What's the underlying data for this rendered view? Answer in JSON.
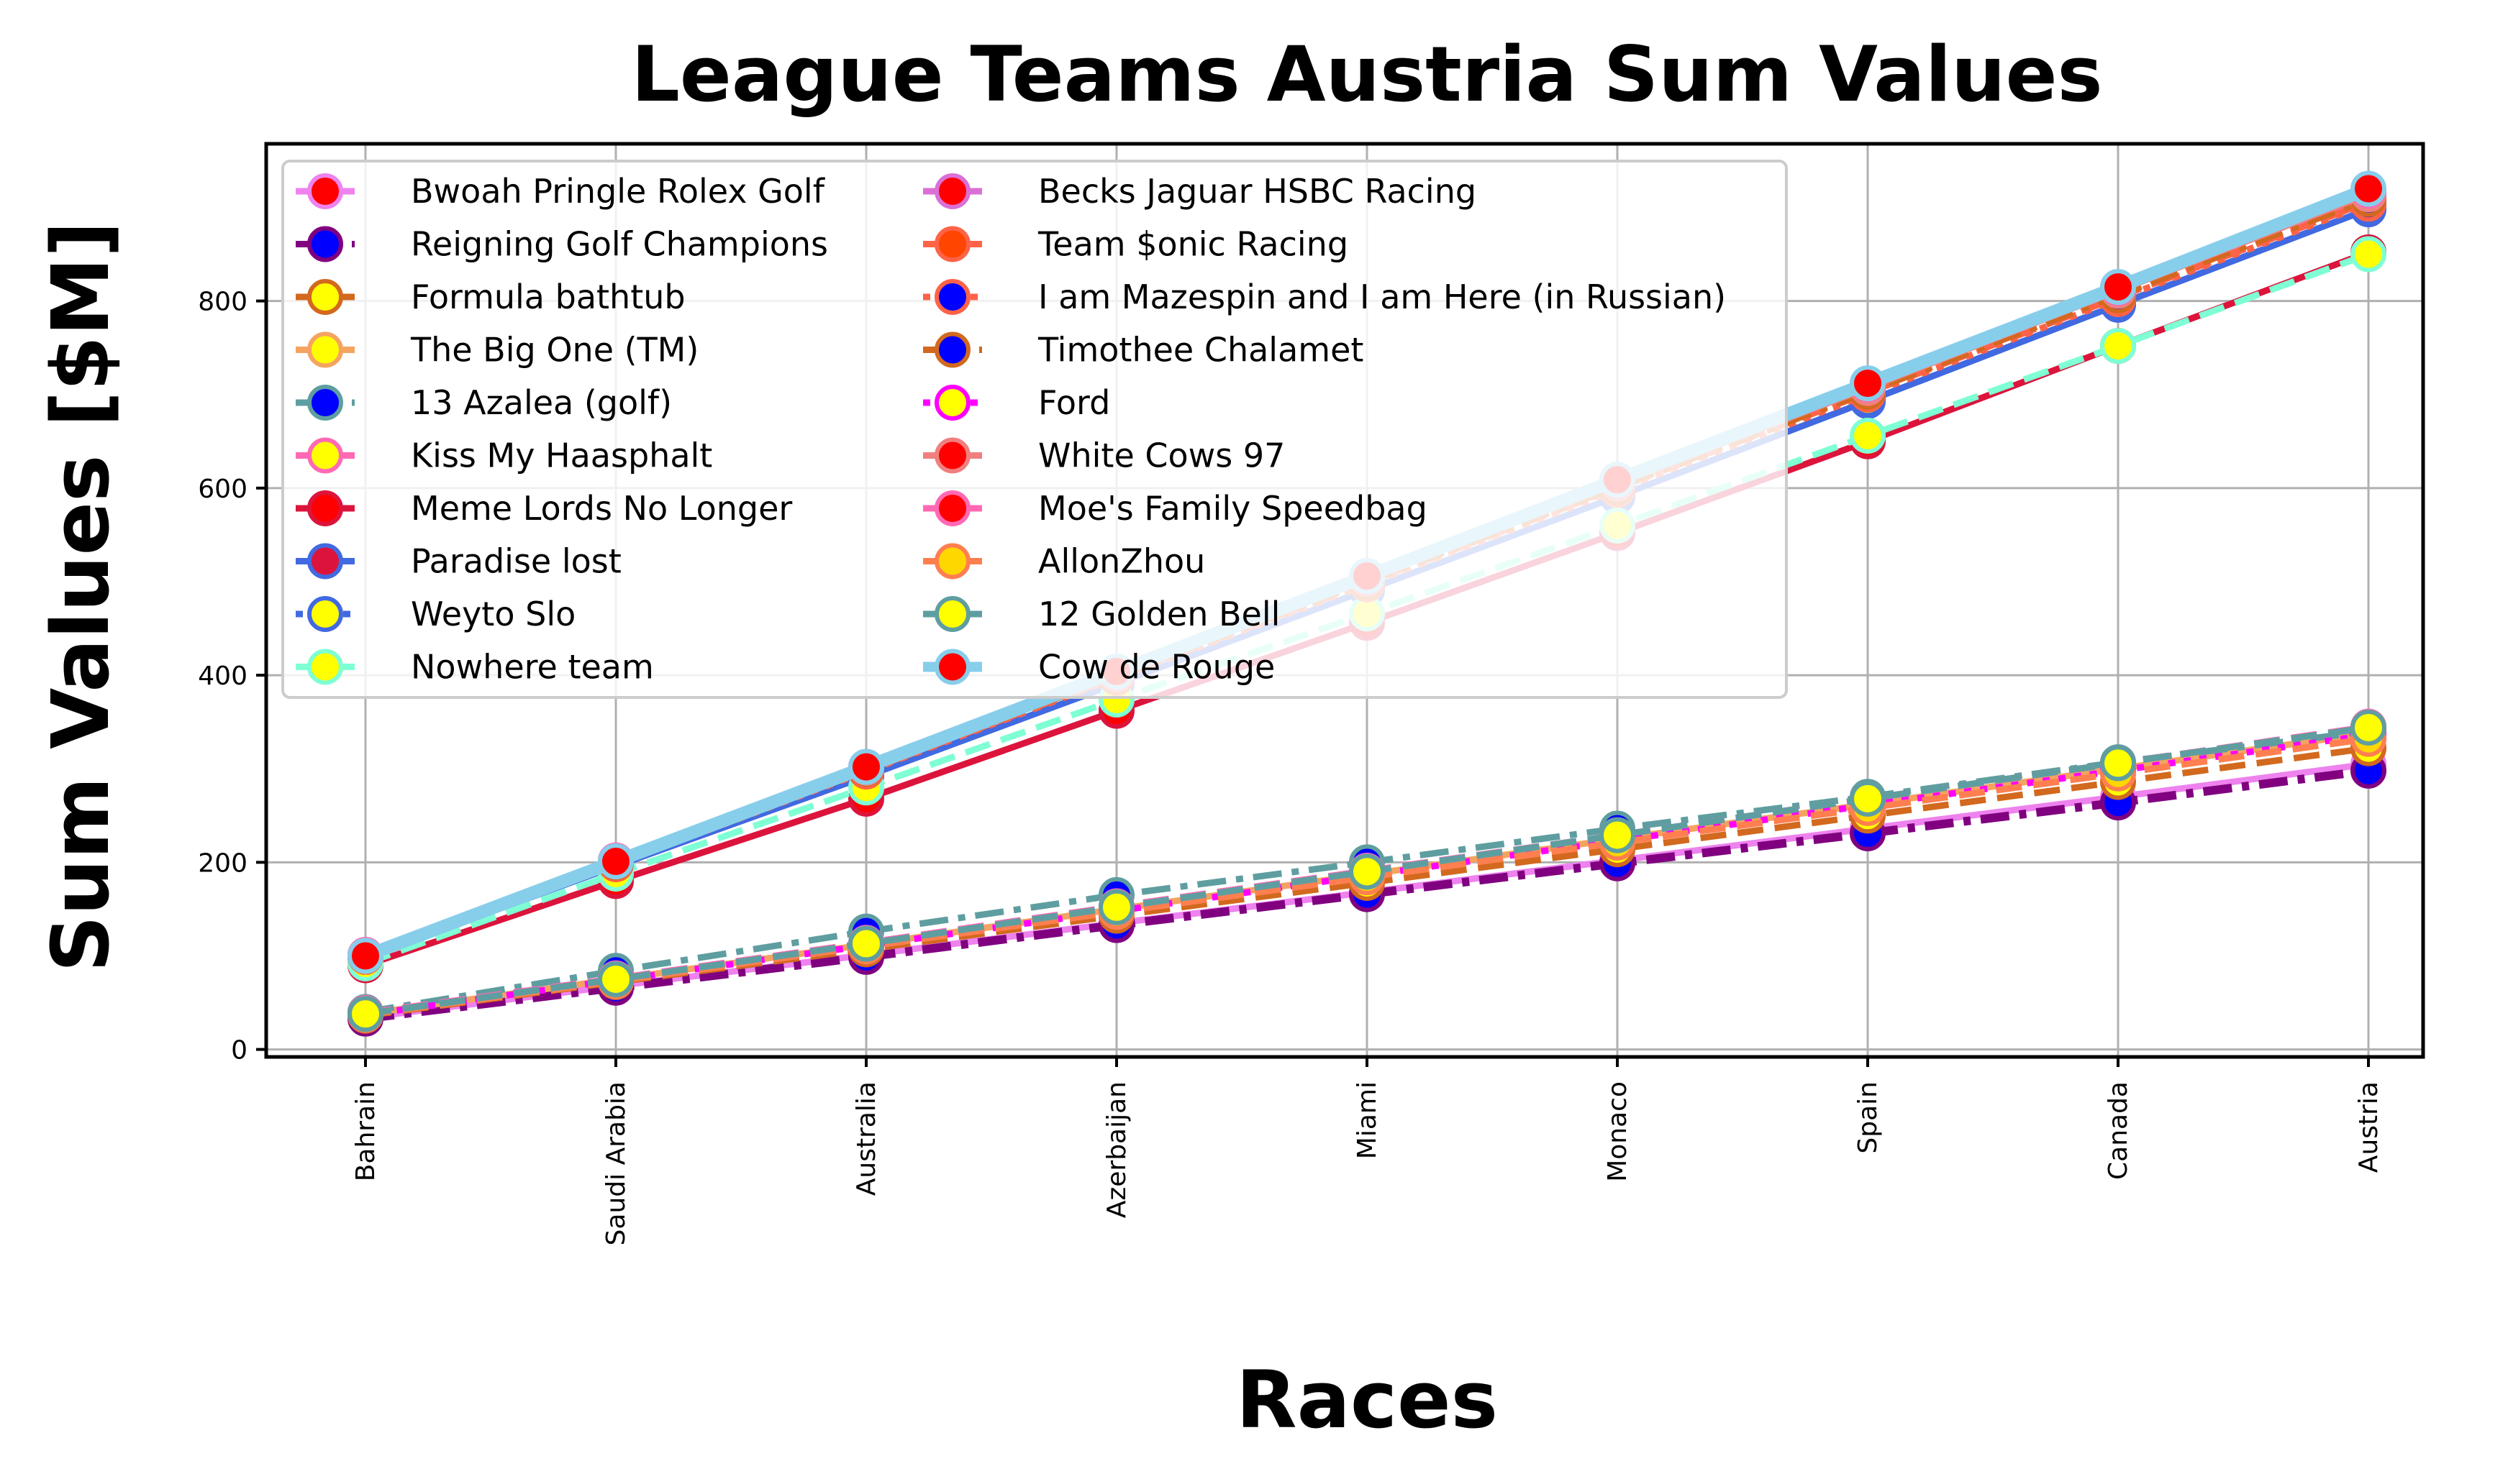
{
  "chart_data": {
    "type": "line",
    "title": "League Teams Austria Sum Values",
    "xlabel": "Races",
    "ylabel": "Sum Values [$M]",
    "categories": [
      "Bahrain",
      "Saudi Arabia",
      "Australia",
      "Azerbaijan",
      "Miami",
      "Monaco",
      "Spain",
      "Canada",
      "Austria"
    ],
    "ylim": [
      -8,
      968
    ],
    "yticks": [
      0,
      200,
      400,
      600,
      800
    ],
    "grid": true,
    "legend_position": "upper-left",
    "legend_columns": 2,
    "series": [
      {
        "name": "Bwoah Pringle Rolex Golf",
        "color": "#ee82ee",
        "marker_color": "#ff0000",
        "dash": "solid",
        "values": [
          34,
          68,
          101,
          135,
          168,
          202,
          236,
          270,
          305
        ]
      },
      {
        "name": "Reigning Golf Champions",
        "color": "#800080",
        "marker_color": "#0000ff",
        "dash": "dashdot",
        "values": [
          33,
          66,
          99,
          133,
          166,
          199,
          231,
          264,
          298
        ]
      },
      {
        "name": "Formula bathtub",
        "color": "#d2691e",
        "marker_color": "#ffff00",
        "dash": "dashed",
        "values": [
          36,
          72,
          107,
          143,
          178,
          214,
          250,
          286,
          322
        ]
      },
      {
        "name": "The Big One (TM)",
        "color": "#f4a460",
        "marker_color": "#ffff00",
        "dash": "solid",
        "values": [
          38,
          75,
          112,
          150,
          187,
          225,
          262,
          300,
          338
        ]
      },
      {
        "name": "13 Azalea (golf)",
        "color": "#5f9ea0",
        "marker_color": "#0000ff",
        "dash": "dashdot",
        "values": [
          40,
          84,
          126,
          165,
          200,
          236,
          270,
          307,
          340
        ]
      },
      {
        "name": "Kiss My Haasphalt",
        "color": "#ff69b4",
        "marker_color": "#ffff00",
        "dash": "dashed",
        "values": [
          39,
          76,
          114,
          153,
          191,
          229,
          268,
          306,
          345
        ]
      },
      {
        "name": "Meme Lords No Longer",
        "color": "#dc143c",
        "marker_color": "#ff0000",
        "dash": "solid",
        "values": [
          90,
          180,
          268,
          362,
          456,
          552,
          650,
          752,
          852
        ]
      },
      {
        "name": "Paradise lost",
        "color": "#4169e1",
        "marker_color": "#dc143c",
        "dash": "solid",
        "values": [
          98,
          196,
          292,
          391,
          491,
          591,
          693,
          796,
          898
        ]
      },
      {
        "name": "Weyto Slo",
        "color": "#4169e1",
        "marker_color": "#ffff00",
        "dash": "dotted",
        "values": [
          99,
          197,
          294,
          393,
          494,
          594,
          695,
          798,
          900
        ]
      },
      {
        "name": "Nowhere team",
        "color": "#7fffd4",
        "marker_color": "#ffff00",
        "dash": "dashed",
        "values": [
          92,
          188,
          280,
          374,
          466,
          560,
          656,
          752,
          850
        ]
      },
      {
        "name": "Becks Jaguar HSBC Racing",
        "color": "#da70d6",
        "marker_color": "#ff0000",
        "dash": "dashed",
        "values": [
          100,
          200,
          300,
          400,
          502,
          604,
          706,
          810,
          912
        ]
      },
      {
        "name": "Team $onic Racing",
        "color": "#ff6347",
        "marker_color": "#ff4500",
        "dash": "dashed",
        "values": [
          100,
          199,
          298,
          398,
          499,
          600,
          702,
          804,
          906
        ]
      },
      {
        "name": "I am Mazespin and I am Here (in Russian)",
        "color": "#ff6347",
        "marker_color": "#0000ff",
        "dash": "dotted",
        "values": [
          99,
          198,
          297,
          397,
          497,
          598,
          700,
          802,
          904
        ]
      },
      {
        "name": "Timothee Chalamet",
        "color": "#d2691e",
        "marker_color": "#0000ff",
        "dash": "dashdot",
        "values": [
          100,
          200,
          300,
          399,
          500,
          601,
          703,
          806,
          909
        ]
      },
      {
        "name": "Ford",
        "color": "#ff00ff",
        "marker_color": "#ffff00",
        "dash": "dotted",
        "values": [
          37,
          74,
          111,
          148,
          186,
          223,
          261,
          298,
          336
        ]
      },
      {
        "name": "White Cows 97",
        "color": "#f08080",
        "marker_color": "#ff0000",
        "dash": "solid",
        "values": [
          101,
          201,
          301,
          401,
          503,
          605,
          707,
          811,
          914
        ]
      },
      {
        "name": "Moe's Family Speedbag",
        "color": "#ff69b4",
        "marker_color": "#ff0000",
        "dash": "solid",
        "values": [
          101,
          202,
          302,
          403,
          505,
          608,
          711,
          814,
          918
        ]
      },
      {
        "name": "AllonZhou",
        "color": "#ff7f50",
        "marker_color": "#ffd700",
        "dash": "dashed",
        "values": [
          37,
          73,
          110,
          147,
          184,
          221,
          258,
          295,
          332
        ]
      },
      {
        "name": "12 Golden Bell",
        "color": "#5f9ea0",
        "marker_color": "#ffff00",
        "dash": "dashed",
        "values": [
          38,
          75,
          113,
          152,
          190,
          229,
          268,
          306,
          344
        ]
      },
      {
        "name": "Cow de Rouge",
        "color": "#87ceeb",
        "marker_color": "#ff0000",
        "dash": "solid",
        "values": [
          100,
          201,
          302,
          404,
          506,
          609,
          712,
          815,
          920
        ]
      }
    ]
  }
}
